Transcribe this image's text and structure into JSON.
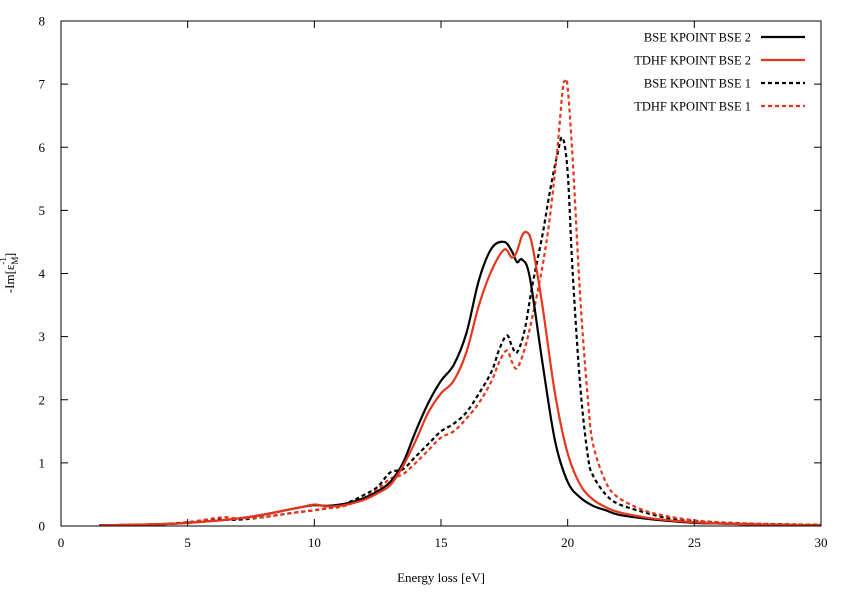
{
  "chart_data": {
    "type": "line",
    "title": "",
    "xlabel": "Energy loss [eV]",
    "ylabel": "-Im[ε_M^-1]",
    "xlim": [
      0,
      30
    ],
    "ylim": [
      0,
      8
    ],
    "xticks": [
      0,
      5,
      10,
      15,
      20,
      25,
      30
    ],
    "yticks": [
      0,
      1,
      2,
      3,
      4,
      5,
      6,
      7,
      8
    ],
    "grid": false,
    "legend_position": "top-right",
    "series": [
      {
        "name": "BSE  KPOINT BSE 2",
        "color": "#000000",
        "dash": "solid",
        "x": [
          1.5,
          3,
          4,
          5,
          6,
          7,
          8,
          9,
          9.5,
          10,
          10.5,
          11,
          11.5,
          12,
          12.5,
          13,
          13.5,
          14,
          14.5,
          15,
          15.5,
          16,
          16.5,
          17,
          17.5,
          17.8,
          18,
          18.2,
          18.5,
          19,
          19.5,
          20,
          20.5,
          21,
          21.5,
          22,
          23,
          24,
          25,
          26,
          28,
          30
        ],
        "y": [
          0.01,
          0.02,
          0.03,
          0.05,
          0.08,
          0.12,
          0.18,
          0.26,
          0.3,
          0.33,
          0.32,
          0.34,
          0.38,
          0.45,
          0.55,
          0.7,
          1.0,
          1.5,
          1.95,
          2.3,
          2.55,
          3.05,
          3.9,
          4.4,
          4.5,
          4.35,
          4.18,
          4.22,
          3.95,
          2.6,
          1.35,
          0.7,
          0.45,
          0.32,
          0.25,
          0.18,
          0.12,
          0.08,
          0.05,
          0.04,
          0.02,
          0.01
        ]
      },
      {
        "name": "TDHF  KPOINT BSE 2",
        "color": "#e8351c",
        "dash": "solid",
        "x": [
          1.5,
          3,
          4,
          5,
          6,
          7,
          8,
          9,
          9.5,
          10,
          10.5,
          11,
          11.5,
          12,
          12.5,
          13,
          13.5,
          14,
          14.5,
          15,
          15.5,
          16,
          16.5,
          17,
          17.5,
          17.8,
          18,
          18.2,
          18.4,
          18.6,
          19,
          19.5,
          20,
          20.5,
          21,
          21.5,
          22,
          23,
          24,
          25,
          26,
          28,
          30
        ],
        "y": [
          0.01,
          0.02,
          0.03,
          0.05,
          0.08,
          0.12,
          0.18,
          0.26,
          0.3,
          0.34,
          0.31,
          0.32,
          0.36,
          0.42,
          0.52,
          0.65,
          0.95,
          1.35,
          1.8,
          2.1,
          2.3,
          2.75,
          3.5,
          4.05,
          4.38,
          4.25,
          4.35,
          4.6,
          4.65,
          4.45,
          3.5,
          2.1,
          1.15,
          0.65,
          0.42,
          0.3,
          0.22,
          0.14,
          0.09,
          0.06,
          0.04,
          0.02,
          0.01
        ]
      },
      {
        "name": "BSE  KPOINT BSE 1",
        "color": "#000000",
        "dash": "dashed",
        "x": [
          1.5,
          3,
          4,
          5,
          6,
          7,
          8,
          9,
          10,
          10.5,
          11,
          11.5,
          12,
          12.5,
          13,
          13.5,
          14,
          14.5,
          15,
          15.5,
          16,
          16.5,
          17,
          17.3,
          17.6,
          17.8,
          18,
          18.3,
          18.6,
          19,
          19.3,
          19.6,
          19.8,
          20,
          20.2,
          20.5,
          20.8,
          21,
          21.5,
          22,
          23,
          24,
          25,
          26,
          28,
          30
        ],
        "y": [
          0.01,
          0.02,
          0.03,
          0.06,
          0.1,
          0.1,
          0.14,
          0.2,
          0.25,
          0.28,
          0.32,
          0.4,
          0.5,
          0.62,
          0.85,
          0.9,
          1.1,
          1.3,
          1.5,
          1.62,
          1.8,
          2.1,
          2.45,
          2.8,
          3.02,
          2.85,
          2.75,
          3.1,
          3.8,
          4.6,
          5.3,
          5.9,
          6.15,
          5.6,
          4.0,
          2.2,
          1.1,
          0.8,
          0.5,
          0.35,
          0.22,
          0.12,
          0.08,
          0.05,
          0.03,
          0.02
        ]
      },
      {
        "name": "TDHF KPOINT BSE 1",
        "color": "#e8351c",
        "dash": "dashed",
        "x": [
          1.5,
          3,
          4,
          5,
          6,
          6.5,
          7,
          8,
          9,
          10,
          10.5,
          11,
          11.5,
          12,
          12.5,
          13,
          13.5,
          14,
          14.5,
          15,
          15.5,
          16,
          16.5,
          17,
          17.3,
          17.6,
          17.8,
          18,
          18.3,
          18.6,
          19,
          19.3,
          19.6,
          19.8,
          19.9,
          20,
          20.2,
          20.5,
          20.8,
          21,
          21.5,
          22,
          23,
          24,
          25,
          26,
          28,
          30
        ],
        "y": [
          0.01,
          0.02,
          0.03,
          0.06,
          0.12,
          0.14,
          0.12,
          0.14,
          0.2,
          0.25,
          0.28,
          0.3,
          0.36,
          0.45,
          0.58,
          0.75,
          0.82,
          1.0,
          1.2,
          1.4,
          1.5,
          1.7,
          1.95,
          2.3,
          2.6,
          2.78,
          2.6,
          2.5,
          2.8,
          3.3,
          4.1,
          4.9,
          6.0,
          6.9,
          7.05,
          6.95,
          5.8,
          3.6,
          2.0,
          1.3,
          0.7,
          0.45,
          0.25,
          0.15,
          0.09,
          0.06,
          0.03,
          0.02
        ]
      }
    ]
  }
}
